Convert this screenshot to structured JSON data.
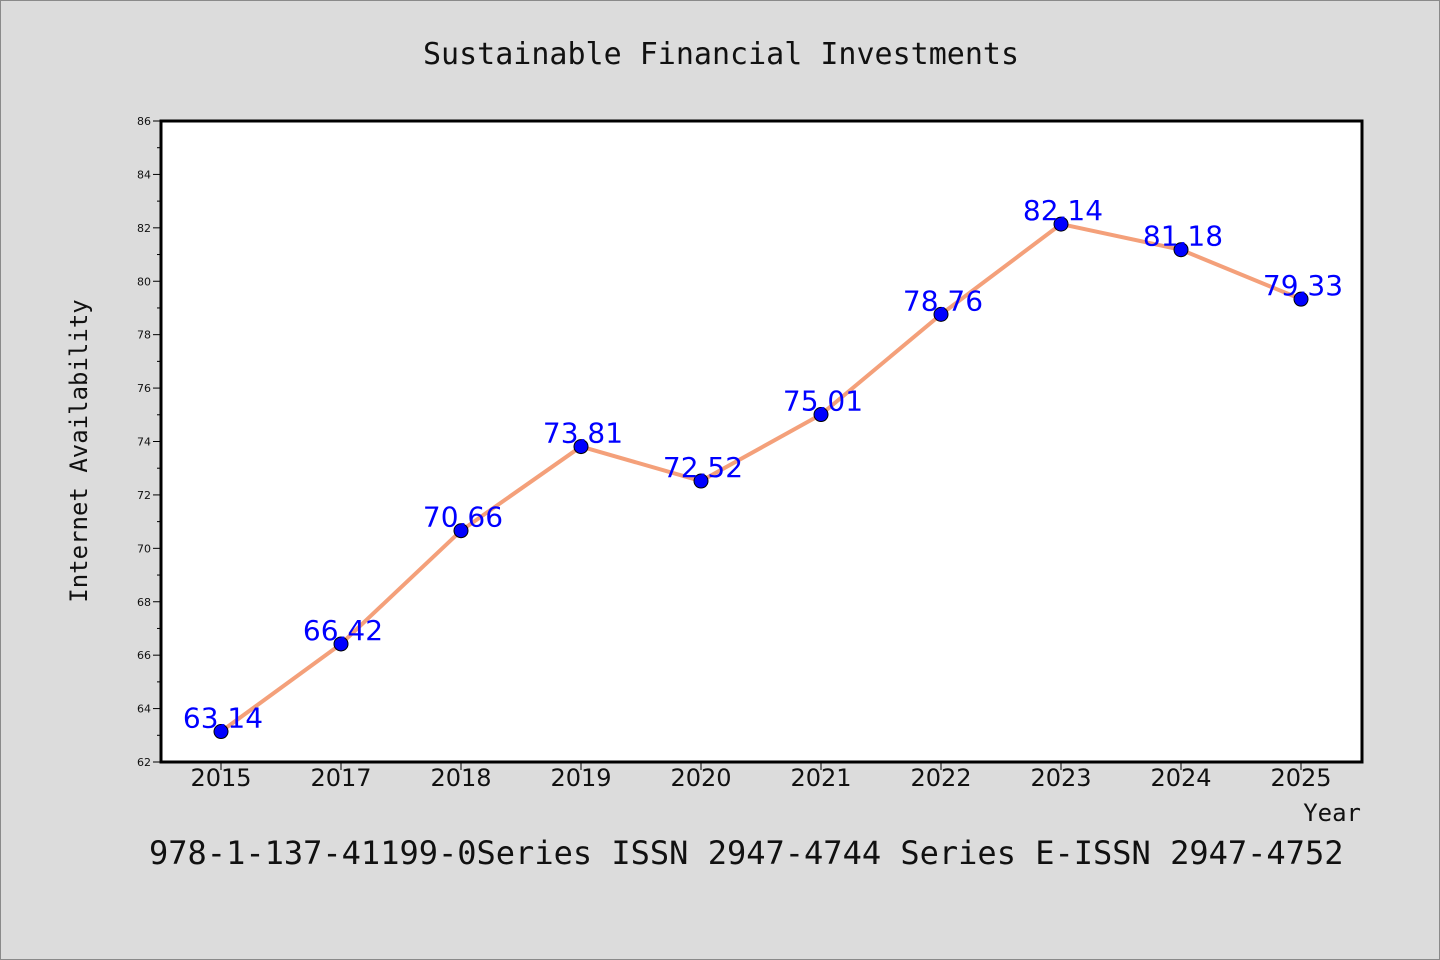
{
  "chart_data": {
    "type": "line",
    "title": "Sustainable Financial Investments",
    "xlabel": "Year",
    "ylabel": "Internet Availability",
    "categories": [
      "2015",
      "2017",
      "2018",
      "2019",
      "2020",
      "2021",
      "2022",
      "2023",
      "2024",
      "2025"
    ],
    "series": [
      {
        "values": [
          63.14,
          66.42,
          70.66,
          73.81,
          72.52,
          75.01,
          78.76,
          82.14,
          81.18,
          79.33
        ]
      }
    ],
    "data_labels": [
      "63.14",
      "66.42",
      "70.66",
      "73.81",
      "72.52",
      "75.01",
      "78.76",
      "82.14",
      "81.18",
      "79.33"
    ],
    "ylim": [
      62,
      86
    ],
    "yticks": [
      "62",
      "64",
      "66",
      "68",
      "70",
      "72",
      "74",
      "76",
      "78",
      "80",
      "82",
      "84",
      "86"
    ],
    "grid": false,
    "legend": "none",
    "line_color": "#f4a07a",
    "marker_color": "#0000ff",
    "label_color": "#0000ff"
  },
  "footer": {
    "text": "978-1-137-41199-0Series ISSN 2947-4744 Series E-ISSN 2947-4752"
  }
}
